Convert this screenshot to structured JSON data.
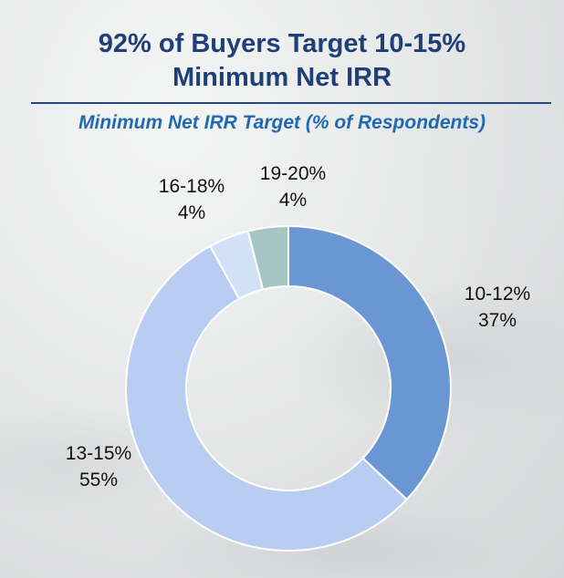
{
  "title_lines": [
    "92% of Buyers Target 10-15%",
    "Minimum Net IRR"
  ],
  "subtitle": "Minimum Net IRR Target (% of Respondents)",
  "chart_data": {
    "type": "pie",
    "variant": "donut",
    "title": "92% of Buyers Target 10-15% Minimum Net IRR",
    "subtitle": "Minimum Net IRR Target (% of Respondents)",
    "unit": "% of respondents",
    "start": "12 o'clock",
    "direction": "clockwise",
    "slices": [
      {
        "category": "10-12%",
        "value": 37,
        "label": "37%",
        "color": "#6b96d4"
      },
      {
        "category": "13-15%",
        "value": 55,
        "label": "55%",
        "color": "#b9cdf2"
      },
      {
        "category": "16-18%",
        "value": 4,
        "label": "4%",
        "color": "#d3e1f7"
      },
      {
        "category": "19-20%",
        "value": 4,
        "label": "4%",
        "color": "#a3c6c4"
      }
    ]
  }
}
